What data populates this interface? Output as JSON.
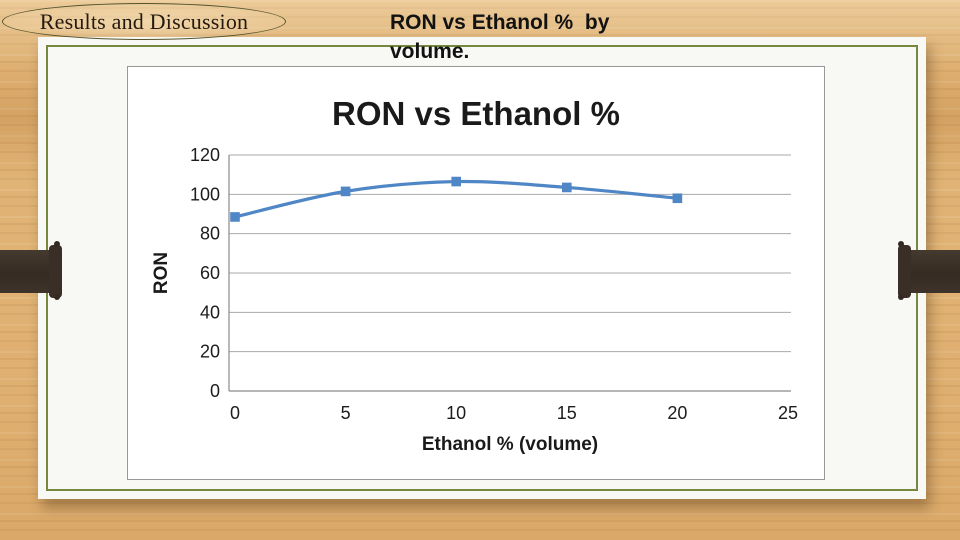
{
  "slide": {
    "badge_label": "Results and Discussion",
    "heading": "RON vs Ethanol %  by\nvolume."
  },
  "colors": {
    "line_blue": "#4f86c5",
    "olive": "#77873f",
    "ribbon_brown": "#3a2f26",
    "wood_tan": "#e0b375",
    "panel_bg": "#f8f8f5",
    "grid_gray": "#a9a9a9",
    "axis_gray": "#8a8a8a",
    "chart_border": "#999999",
    "text_dark": "#1c1c1c"
  },
  "chart_data": {
    "type": "line",
    "title": "RON vs Ethanol %",
    "xlabel": "Ethanol  % (volume)",
    "ylabel": "RON",
    "x": [
      0,
      5,
      10,
      15,
      20
    ],
    "y": [
      88.5,
      101.5,
      106.5,
      103.5,
      98
    ],
    "xlim": [
      0,
      25
    ],
    "ylim": [
      0,
      120
    ],
    "xticks": [
      0,
      5,
      10,
      15,
      20,
      25
    ],
    "yticks": [
      0,
      20,
      40,
      60,
      80,
      100,
      120
    ],
    "grid": true,
    "legend": "none",
    "marker": "square",
    "smooth": true
  }
}
